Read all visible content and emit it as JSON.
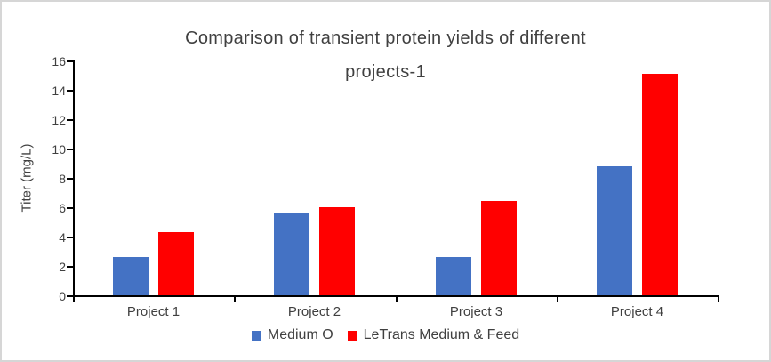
{
  "ui": {
    "title_lines": [
      "Comparison of transient protein yields of different",
      "projects-1"
    ]
  },
  "chart_data": {
    "type": "bar",
    "title": "Comparison of transient protein yields of different projects-1",
    "xlabel": "",
    "ylabel": "Titer (mg/L)",
    "categories": [
      "Project 1",
      "Project 2",
      "Project 3",
      "Project 4"
    ],
    "series": [
      {
        "name": "Medium O",
        "color": "#4472C4",
        "values": [
          2.6,
          5.6,
          2.6,
          8.8
        ]
      },
      {
        "name": "LeTrans Medium & Feed",
        "color": "#FF0000",
        "values": [
          4.3,
          6.0,
          6.4,
          15.1
        ]
      }
    ],
    "ylim": [
      0,
      16
    ],
    "yticks": [
      0,
      2,
      4,
      6,
      8,
      10,
      12,
      14,
      16
    ],
    "grid": false,
    "legend_position": "bottom",
    "axis_color": "#000000",
    "label_color": "#404040"
  }
}
